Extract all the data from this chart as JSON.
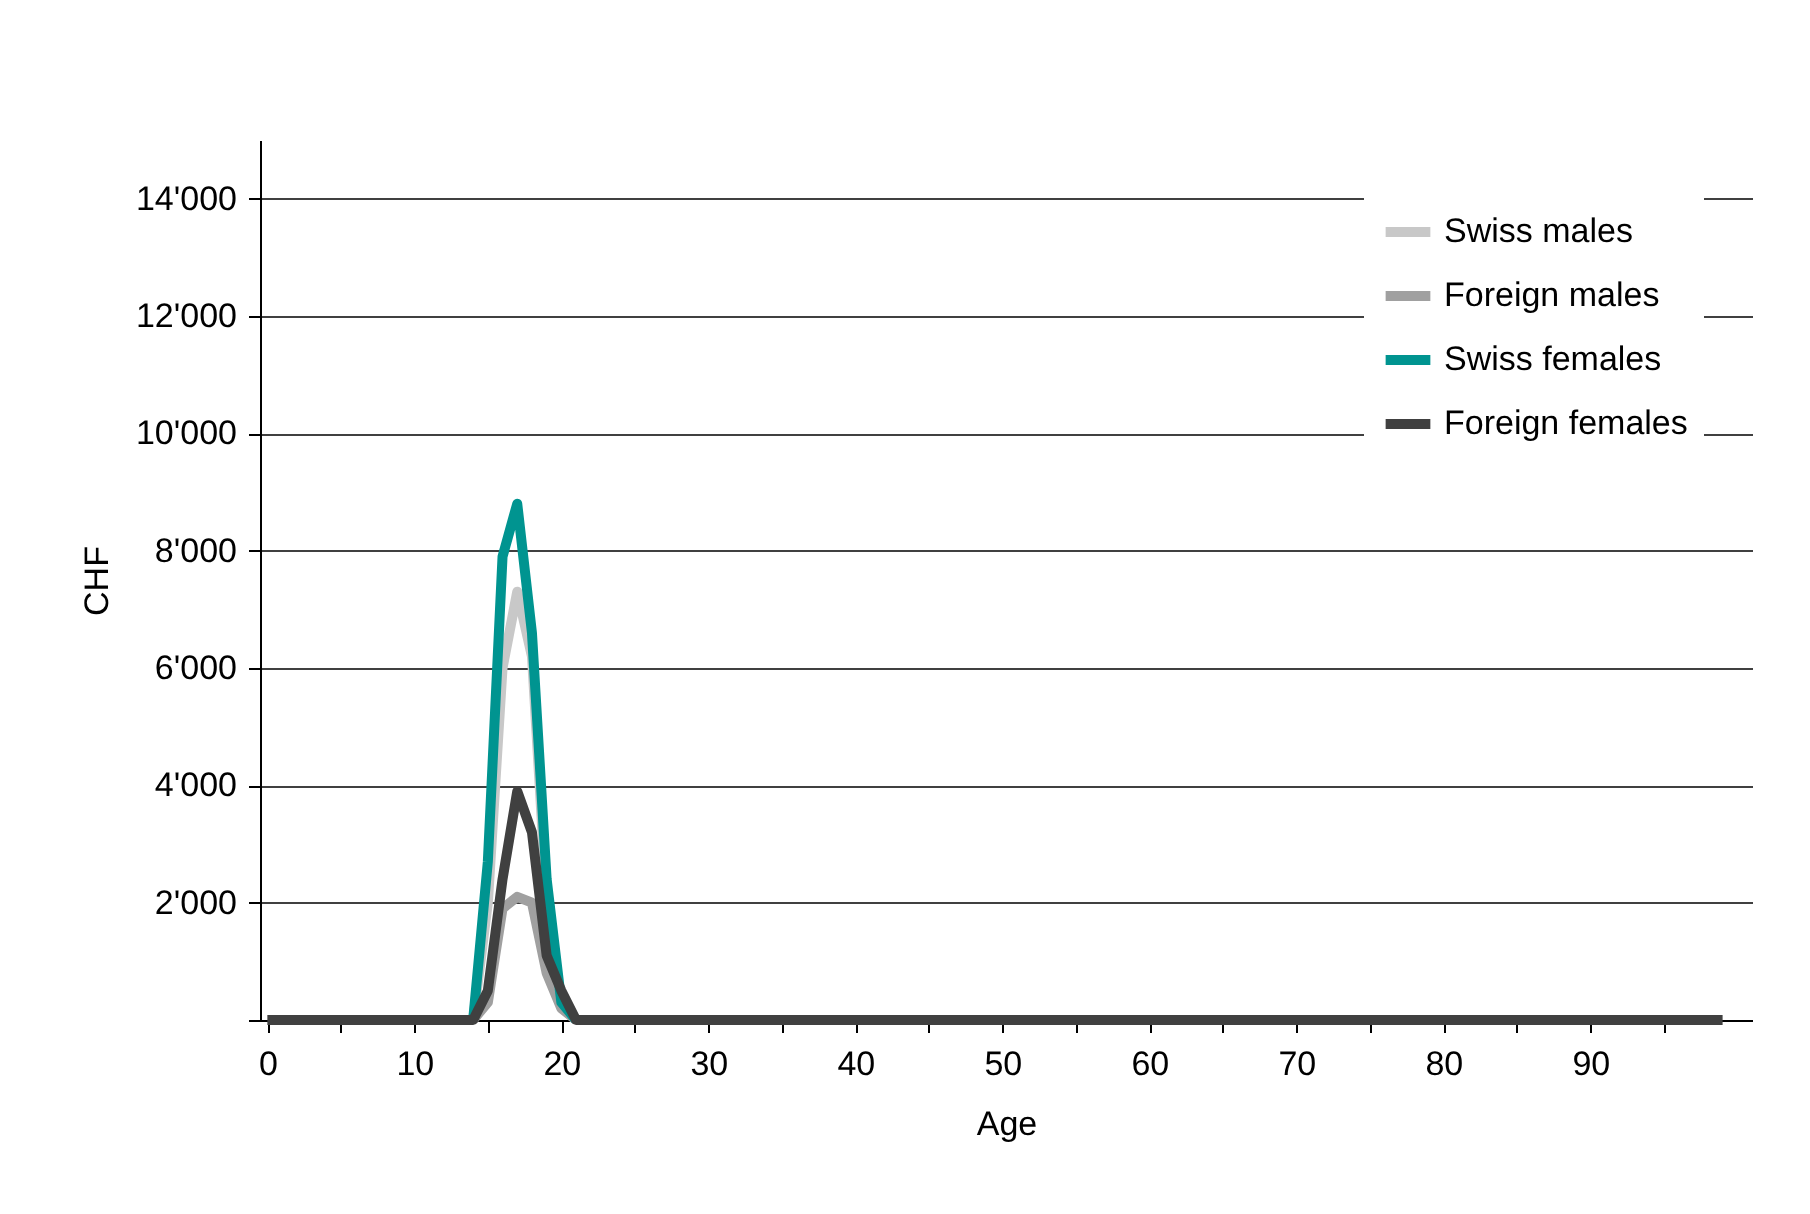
{
  "chart_data": {
    "type": "line",
    "xlabel": "Age",
    "ylabel": "CHF",
    "x": [
      0,
      1,
      2,
      3,
      4,
      5,
      6,
      7,
      8,
      9,
      10,
      11,
      12,
      13,
      14,
      15,
      16,
      17,
      18,
      19,
      20,
      21,
      22,
      23,
      24,
      25,
      26,
      27,
      28,
      29,
      30,
      31,
      32,
      33,
      34,
      35,
      36,
      37,
      38,
      39,
      40,
      41,
      42,
      43,
      44,
      45,
      46,
      47,
      48,
      49,
      50,
      51,
      52,
      53,
      54,
      55,
      56,
      57,
      58,
      59,
      60,
      61,
      62,
      63,
      64,
      65,
      66,
      67,
      68,
      69,
      70,
      71,
      72,
      73,
      74,
      75,
      76,
      77,
      78,
      79,
      80,
      81,
      82,
      83,
      84,
      85,
      86,
      87,
      88,
      89,
      90,
      91,
      92,
      93,
      94,
      95,
      96,
      97,
      98,
      99
    ],
    "series": [
      {
        "name": "Swiss males",
        "color": "#c8c8c8",
        "values": [
          null,
          null,
          null,
          null,
          null,
          null,
          null,
          null,
          null,
          null,
          null,
          null,
          null,
          null,
          0,
          2000,
          6000,
          7300,
          6200,
          2000,
          300,
          0,
          null,
          null,
          null,
          null,
          null,
          null,
          null,
          null,
          null,
          null,
          null,
          null,
          null,
          null,
          null,
          null,
          null,
          null,
          null,
          null,
          null,
          null,
          null,
          null,
          null,
          null,
          null,
          null,
          null,
          null,
          null,
          null,
          null,
          null,
          null,
          null,
          null,
          null,
          null,
          null,
          null,
          null,
          null,
          null,
          null,
          null,
          null,
          null,
          null,
          null,
          null,
          null,
          null,
          null,
          null,
          null,
          null,
          null,
          null,
          null,
          null,
          null,
          null,
          null,
          null,
          null,
          null,
          null,
          null,
          null,
          null,
          null,
          null,
          null,
          null,
          null,
          null,
          null
        ]
      },
      {
        "name": "Foreign males",
        "color": "#a0a0a0",
        "values": [
          null,
          null,
          null,
          null,
          null,
          null,
          null,
          null,
          null,
          null,
          null,
          null,
          null,
          null,
          0,
          300,
          1900,
          2100,
          2000,
          800,
          200,
          0,
          null,
          null,
          null,
          null,
          null,
          null,
          null,
          null,
          null,
          null,
          null,
          null,
          null,
          null,
          null,
          null,
          null,
          null,
          null,
          null,
          null,
          null,
          null,
          null,
          null,
          null,
          null,
          null,
          null,
          null,
          null,
          null,
          null,
          null,
          null,
          null,
          null,
          null,
          null,
          null,
          null,
          null,
          null,
          null,
          null,
          null,
          null,
          null,
          null,
          null,
          null,
          null,
          null,
          null,
          null,
          null,
          null,
          null,
          null,
          null,
          null,
          null,
          null,
          null,
          null,
          null,
          null,
          null,
          null,
          null,
          null,
          null,
          null,
          null,
          null,
          null,
          null,
          null
        ]
      },
      {
        "name": "Swiss females",
        "color": "#009490",
        "values": [
          null,
          null,
          null,
          null,
          null,
          null,
          null,
          null,
          null,
          null,
          null,
          null,
          null,
          null,
          0,
          2700,
          7900,
          8800,
          6600,
          2400,
          300,
          0,
          null,
          null,
          null,
          null,
          null,
          null,
          null,
          null,
          null,
          null,
          null,
          null,
          null,
          null,
          null,
          null,
          null,
          null,
          null,
          null,
          null,
          null,
          null,
          null,
          null,
          null,
          null,
          null,
          null,
          null,
          null,
          null,
          null,
          null,
          null,
          null,
          null,
          null,
          null,
          null,
          null,
          null,
          null,
          null,
          null,
          null,
          null,
          null,
          null,
          null,
          null,
          null,
          null,
          null,
          null,
          null,
          null,
          null,
          null,
          null,
          null,
          null,
          null,
          null,
          null,
          null,
          null,
          null,
          null,
          null,
          null,
          null,
          null,
          null,
          null,
          null,
          null,
          null
        ]
      },
      {
        "name": "Foreign females",
        "color": "#404040",
        "values": [
          0,
          0,
          0,
          0,
          0,
          0,
          0,
          0,
          0,
          0,
          0,
          0,
          0,
          0,
          0,
          500,
          2400,
          3900,
          3200,
          1100,
          500,
          0,
          0,
          0,
          0,
          0,
          0,
          0,
          0,
          0,
          0,
          0,
          0,
          0,
          0,
          0,
          0,
          0,
          0,
          0,
          0,
          0,
          0,
          0,
          0,
          0,
          0,
          0,
          0,
          0,
          0,
          0,
          0,
          0,
          0,
          0,
          0,
          0,
          0,
          0,
          0,
          0,
          0,
          0,
          0,
          0,
          0,
          0,
          0,
          0,
          0,
          0,
          0,
          0,
          0,
          0,
          0,
          0,
          0,
          0,
          0,
          0,
          0,
          0,
          0,
          0,
          0,
          0,
          0,
          0,
          0,
          0,
          0,
          0,
          0,
          0,
          0,
          0,
          0,
          0
        ]
      }
    ],
    "xlim": [
      -0.5,
      101
    ],
    "xticks": [
      0,
      {
        "value": 5,
        "label": null
      },
      10,
      {
        "value": 15,
        "label": null
      },
      20,
      {
        "value": 25,
        "label": null
      },
      30,
      {
        "value": 35,
        "label": null
      },
      40,
      {
        "value": 45,
        "label": null
      },
      50,
      {
        "value": 55,
        "label": null
      },
      60,
      {
        "value": 65,
        "label": null
      },
      70,
      {
        "value": 75,
        "label": null
      },
      80,
      {
        "value": 85,
        "label": null
      },
      90,
      {
        "value": 95,
        "label": null
      }
    ],
    "ylim": [
      0,
      15000
    ],
    "yticks": [
      {
        "value": 0,
        "label": null
      },
      {
        "value": 2000,
        "label": "2'000"
      },
      {
        "value": 4000,
        "label": "4'000"
      },
      {
        "value": 6000,
        "label": "6'000"
      },
      {
        "value": 8000,
        "label": "8'000"
      },
      {
        "value": 10000,
        "label": "10'000"
      },
      {
        "value": 12000,
        "label": "12'000"
      },
      {
        "value": 14000,
        "label": "14'000"
      }
    ],
    "grid": "y",
    "legend": "top right",
    "marker": "none",
    "line_style": "solid"
  }
}
